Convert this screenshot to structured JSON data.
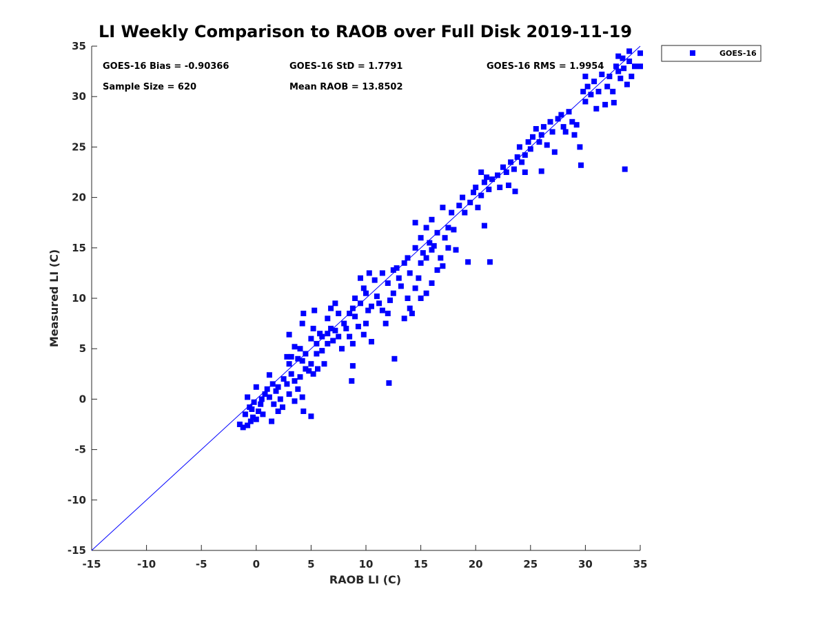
{
  "chart_data": {
    "type": "scatter",
    "title": "LI Weekly Comparison to RAOB over Full Disk 2019-11-19",
    "xlabel": "RAOB LI (C)",
    "ylabel": "Measured LI (C)",
    "xlim": [
      -15,
      35
    ],
    "ylim": [
      -15,
      35
    ],
    "x_ticks": [
      "-15",
      "-10",
      "-5",
      "0",
      "5",
      "10",
      "15",
      "20",
      "25",
      "30",
      "35"
    ],
    "y_ticks": [
      "35",
      "30",
      "25",
      "20",
      "15",
      "10",
      "5",
      "0",
      "-5",
      "-10",
      "-15"
    ],
    "reference_line": {
      "name": "1:1 line",
      "from": [
        -15,
        -15
      ],
      "to": [
        35,
        35
      ],
      "color": "#0000ff"
    },
    "stats": {
      "bias": "GOES-16 Bias = -0.90366",
      "std": "GOES-16 StD = 1.7791",
      "rms": "GOES-16 RMS = 1.9954",
      "sample_size": "Sample Size = 620",
      "mean_raob": "Mean RAOB = 13.8502"
    },
    "legend": {
      "label": "GOES-16",
      "position": "outside-top-right"
    },
    "marker_color": "#0000ff",
    "series": [
      {
        "name": "GOES-16",
        "points": [
          [
            -1.5,
            -2.5
          ],
          [
            -1.2,
            -2.8
          ],
          [
            -0.8,
            -2.6
          ],
          [
            -0.5,
            -2.2
          ],
          [
            -1.0,
            -1.5
          ],
          [
            -0.3,
            -1.8
          ],
          [
            0.0,
            -2.0
          ],
          [
            0.2,
            -1.2
          ],
          [
            -0.6,
            -0.8
          ],
          [
            0.4,
            -0.5
          ],
          [
            -0.2,
            -0.3
          ],
          [
            0.5,
            0.0
          ],
          [
            -0.8,
            0.2
          ],
          [
            0.8,
            0.5
          ],
          [
            1.0,
            1.0
          ],
          [
            1.2,
            0.2
          ],
          [
            0.0,
            1.2
          ],
          [
            -0.4,
            -1.0
          ],
          [
            0.6,
            -1.5
          ],
          [
            1.5,
            1.5
          ],
          [
            1.8,
            0.8
          ],
          [
            2.0,
            1.2
          ],
          [
            2.2,
            0.0
          ],
          [
            1.6,
            -0.5
          ],
          [
            1.4,
            -2.2
          ],
          [
            2.5,
            2.0
          ],
          [
            1.2,
            2.4
          ],
          [
            2.8,
            1.5
          ],
          [
            3.0,
            0.5
          ],
          [
            2.4,
            -0.8
          ],
          [
            3.2,
            2.5
          ],
          [
            3.5,
            1.8
          ],
          [
            2.0,
            -1.2
          ],
          [
            3.8,
            1.0
          ],
          [
            4.0,
            2.2
          ],
          [
            4.2,
            0.2
          ],
          [
            3.5,
            -0.2
          ],
          [
            4.5,
            3.0
          ],
          [
            4.3,
            -1.2
          ],
          [
            5.0,
            -1.7
          ],
          [
            3.0,
            3.5
          ],
          [
            3.2,
            4.2
          ],
          [
            3.8,
            4.0
          ],
          [
            4.0,
            5.0
          ],
          [
            4.5,
            4.5
          ],
          [
            3.5,
            5.2
          ],
          [
            3.0,
            6.4
          ],
          [
            2.8,
            4.2
          ],
          [
            4.2,
            3.8
          ],
          [
            5.0,
            3.5
          ],
          [
            5.2,
            2.5
          ],
          [
            4.8,
            2.8
          ],
          [
            5.0,
            6.0
          ],
          [
            5.5,
            5.5
          ],
          [
            5.2,
            7.0
          ],
          [
            5.8,
            6.5
          ],
          [
            5.5,
            4.5
          ],
          [
            6.0,
            4.8
          ],
          [
            6.2,
            3.5
          ],
          [
            5.6,
            3.0
          ],
          [
            4.2,
            7.5
          ],
          [
            4.3,
            8.5
          ],
          [
            5.3,
            8.8
          ],
          [
            6.5,
            6.5
          ],
          [
            6.8,
            7.0
          ],
          [
            7.0,
            5.8
          ],
          [
            7.2,
            6.8
          ],
          [
            6.0,
            6.2
          ],
          [
            6.5,
            5.5
          ],
          [
            7.5,
            6.2
          ],
          [
            7.8,
            5.0
          ],
          [
            8.0,
            7.5
          ],
          [
            7.5,
            8.5
          ],
          [
            6.5,
            8.0
          ],
          [
            6.8,
            9.0
          ],
          [
            7.2,
            9.5
          ],
          [
            8.2,
            7.0
          ],
          [
            8.5,
            6.2
          ],
          [
            8.8,
            5.5
          ],
          [
            8.5,
            8.5
          ],
          [
            9.0,
            8.2
          ],
          [
            8.8,
            9.0
          ],
          [
            9.5,
            9.5
          ],
          [
            9.0,
            10.0
          ],
          [
            9.3,
            7.2
          ],
          [
            9.8,
            6.4
          ],
          [
            10.0,
            7.5
          ],
          [
            10.2,
            8.8
          ],
          [
            10.5,
            9.2
          ],
          [
            10.0,
            10.5
          ],
          [
            9.8,
            11.0
          ],
          [
            9.5,
            12.0
          ],
          [
            10.3,
            12.5
          ],
          [
            10.8,
            11.8
          ],
          [
            11.0,
            10.2
          ],
          [
            11.2,
            9.5
          ],
          [
            10.5,
            5.7
          ],
          [
            11.5,
            8.8
          ],
          [
            11.8,
            7.5
          ],
          [
            12.0,
            8.5
          ],
          [
            12.2,
            9.8
          ],
          [
            12.5,
            10.5
          ],
          [
            12.0,
            11.5
          ],
          [
            11.5,
            12.5
          ],
          [
            12.8,
            13.0
          ],
          [
            13.0,
            12.0
          ],
          [
            13.2,
            11.2
          ],
          [
            12.5,
            12.8
          ],
          [
            13.5,
            13.5
          ],
          [
            13.8,
            14.0
          ],
          [
            12.6,
            4.0
          ],
          [
            12.1,
            1.6
          ],
          [
            8.7,
            1.8
          ],
          [
            8.8,
            3.3
          ],
          [
            13.5,
            8.0
          ],
          [
            14.0,
            9.0
          ],
          [
            14.2,
            8.5
          ],
          [
            13.8,
            10.0
          ],
          [
            14.5,
            11.0
          ],
          [
            14.0,
            12.5
          ],
          [
            14.8,
            12.0
          ],
          [
            15.0,
            13.5
          ],
          [
            15.2,
            14.5
          ],
          [
            14.5,
            15.0
          ],
          [
            15.5,
            14.0
          ],
          [
            15.8,
            15.5
          ],
          [
            15.0,
            16.0
          ],
          [
            16.0,
            14.8
          ],
          [
            16.2,
            15.2
          ],
          [
            16.5,
            16.5
          ],
          [
            15.5,
            17.0
          ],
          [
            16.0,
            17.8
          ],
          [
            14.5,
            17.5
          ],
          [
            16.8,
            14.0
          ],
          [
            17.0,
            13.2
          ],
          [
            17.5,
            15.0
          ],
          [
            16.5,
            12.8
          ],
          [
            15.5,
            10.5
          ],
          [
            15.0,
            10.0
          ],
          [
            16.0,
            11.5
          ],
          [
            17.2,
            16.0
          ],
          [
            17.5,
            17.0
          ],
          [
            18.0,
            16.8
          ],
          [
            17.8,
            18.5
          ],
          [
            17.0,
            19.0
          ],
          [
            18.5,
            19.2
          ],
          [
            18.8,
            20.0
          ],
          [
            19.0,
            18.5
          ],
          [
            19.5,
            19.5
          ],
          [
            19.8,
            20.5
          ],
          [
            19.3,
            13.6
          ],
          [
            21.3,
            13.6
          ],
          [
            18.2,
            14.8
          ],
          [
            20.0,
            21.0
          ],
          [
            20.2,
            19.0
          ],
          [
            20.5,
            20.2
          ],
          [
            20.8,
            21.5
          ],
          [
            21.0,
            22.0
          ],
          [
            20.5,
            22.5
          ],
          [
            21.2,
            20.8
          ],
          [
            20.8,
            17.2
          ],
          [
            21.5,
            21.8
          ],
          [
            22.0,
            22.2
          ],
          [
            22.2,
            21.0
          ],
          [
            22.5,
            23.0
          ],
          [
            22.8,
            22.5
          ],
          [
            23.0,
            21.2
          ],
          [
            23.2,
            23.5
          ],
          [
            23.5,
            22.8
          ],
          [
            23.8,
            24.0
          ],
          [
            23.6,
            20.6
          ],
          [
            24.0,
            25.0
          ],
          [
            24.2,
            23.5
          ],
          [
            24.5,
            24.2
          ],
          [
            24.8,
            25.5
          ],
          [
            25.0,
            24.8
          ],
          [
            24.5,
            22.5
          ],
          [
            25.2,
            26.0
          ],
          [
            25.5,
            26.8
          ],
          [
            25.8,
            25.5
          ],
          [
            26.0,
            26.2
          ],
          [
            26.2,
            27.0
          ],
          [
            26.5,
            25.2
          ],
          [
            26.0,
            22.6
          ],
          [
            26.8,
            27.5
          ],
          [
            27.0,
            26.5
          ],
          [
            27.2,
            24.5
          ],
          [
            27.5,
            27.8
          ],
          [
            27.8,
            28.2
          ],
          [
            28.0,
            27.0
          ],
          [
            28.2,
            26.5
          ],
          [
            28.5,
            28.5
          ],
          [
            28.8,
            27.5
          ],
          [
            29.0,
            26.2
          ],
          [
            29.2,
            27.2
          ],
          [
            29.5,
            25.0
          ],
          [
            29.6,
            23.2
          ],
          [
            29.8,
            30.5
          ],
          [
            30.0,
            29.5
          ],
          [
            30.2,
            31.0
          ],
          [
            30.5,
            30.2
          ],
          [
            30.0,
            32.0
          ],
          [
            30.8,
            31.5
          ],
          [
            31.0,
            28.8
          ],
          [
            31.2,
            30.5
          ],
          [
            31.5,
            32.2
          ],
          [
            31.8,
            29.2
          ],
          [
            32.0,
            31.0
          ],
          [
            32.2,
            32.0
          ],
          [
            32.5,
            30.5
          ],
          [
            32.6,
            29.4
          ],
          [
            32.8,
            33.0
          ],
          [
            33.0,
            32.5
          ],
          [
            33.2,
            31.8
          ],
          [
            33.5,
            32.8
          ],
          [
            33.0,
            34.0
          ],
          [
            33.6,
            22.8
          ],
          [
            34.0,
            33.5
          ],
          [
            33.8,
            31.2
          ],
          [
            34.2,
            32.0
          ],
          [
            34.5,
            33.0
          ],
          [
            35.0,
            34.3
          ],
          [
            35.0,
            33.0
          ],
          [
            34.0,
            34.5
          ],
          [
            33.4,
            33.8
          ]
        ]
      }
    ]
  }
}
